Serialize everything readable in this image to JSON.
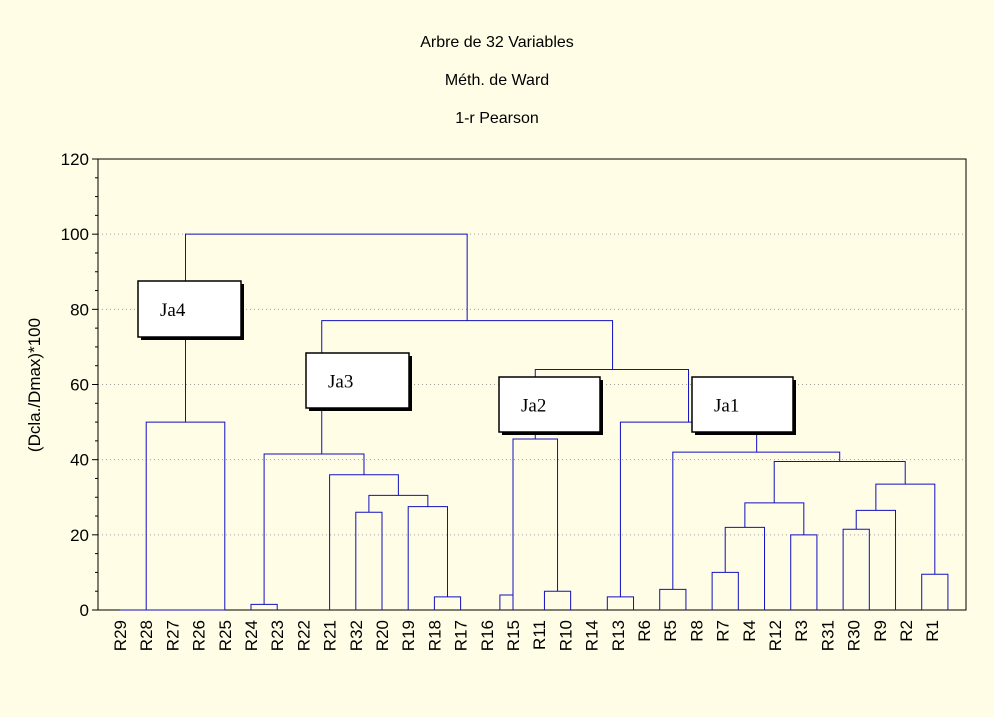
{
  "chart_data": {
    "type": "dendrogram",
    "title": "Arbre de 32 Variables",
    "subtitle1": "Méth. de Ward",
    "subtitle2": "1-r Pearson",
    "ylabel": "(Dcla./Dmax)*100",
    "ylim": [
      0,
      120
    ],
    "yticks": [
      0,
      20,
      40,
      60,
      80,
      100,
      120
    ],
    "grid": true,
    "leaves": [
      "R29",
      "R28",
      "R27",
      "R26",
      "R25",
      "R24",
      "R23",
      "R22",
      "R21",
      "R32",
      "R20",
      "R19",
      "R18",
      "R17",
      "R16",
      "R15",
      "R11",
      "R10",
      "R14",
      "R13",
      "R6",
      "R5",
      "R8",
      "R7",
      "R4",
      "R12",
      "R3",
      "R31",
      "R30",
      "R9",
      "R2",
      "R1"
    ],
    "merges": [
      {
        "a": "R28",
        "b": "R27",
        "height": 0
      },
      {
        "a": "R28+R27",
        "b": "R26",
        "height": 0
      },
      {
        "a": "R28+R27+R26",
        "b": "R25",
        "height": 0
      },
      {
        "a": "R29",
        "b": "R28+R27+R26+R25",
        "height": 0
      },
      {
        "a": "Ja4-left",
        "b": "Ja4-right",
        "height": 50
      },
      {
        "a": "R24",
        "b": "R23",
        "height": 1.5
      },
      {
        "a": "R21",
        "b": "R32",
        "height": 0
      },
      {
        "a": "R20",
        "b": "R19",
        "height": 26
      },
      {
        "a": "R17",
        "b": "R16",
        "height": 3.5
      },
      {
        "a": "R18",
        "b": "R17+R16",
        "height": 27.5
      },
      {
        "a": "R20+R19",
        "b": "R18+R17+R16",
        "height": 30.5
      },
      {
        "a": "R21+R32",
        "b": "R20..R16",
        "height": 36
      },
      {
        "a": "R24+R23",
        "b": "R21..R16",
        "height": 41.5
      },
      {
        "a": "R15",
        "b": "R11",
        "height": 4
      },
      {
        "a": "R10",
        "b": "R14",
        "height": 5
      },
      {
        "a": "R15+R11",
        "b": "R10+R14",
        "height": 45.5
      },
      {
        "a": "R6",
        "b": "R5",
        "height": 3.5
      },
      {
        "a": "R7",
        "b": "R4",
        "height": 10
      },
      {
        "a": "R8",
        "b": "R7+R4",
        "height": 22
      },
      {
        "a": "R3",
        "b": "R31",
        "height": 20
      },
      {
        "a": "R8+R7+R4",
        "b": "R3+R31",
        "height": 28.5
      },
      {
        "a": "R30",
        "b": "R9",
        "height": 22
      },
      {
        "a": "R30+R9",
        "b": "R2",
        "height": 26.5
      },
      {
        "a": "R1",
        "b": "R1b",
        "height": 9.5
      },
      {
        "a": "R30+R9+R2",
        "b": "R1",
        "height": 33.5
      },
      {
        "a": "R8..R31",
        "b": "R30..R1",
        "height": 39.5
      },
      {
        "a": "R5",
        "b": "R8..R1",
        "height": 42
      },
      {
        "a": "R6+R5",
        "b": "Ja1",
        "height": 50
      },
      {
        "a": "Ja2",
        "b": "Ja1-group",
        "height": 64
      },
      {
        "a": "Ja3",
        "b": "Ja2+Ja1",
        "height": 77
      },
      {
        "a": "Ja4",
        "b": "rest",
        "height": 100
      }
    ],
    "cluster_labels": [
      "Ja4",
      "Ja3",
      "Ja2",
      "Ja1"
    ],
    "line_color": "#1010c0"
  }
}
